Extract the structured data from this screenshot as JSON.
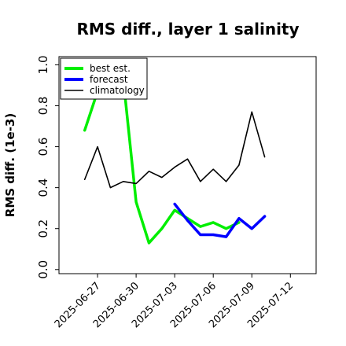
{
  "chart_data": {
    "type": "line",
    "title": "RMS diff., layer 1 salinity",
    "xlabel": "",
    "ylabel": "RMS diff. (1e-3)",
    "ylim": [
      -0.02,
      1.04
    ],
    "xlim": [
      "2025-06-24",
      "2025-07-14"
    ],
    "yticks": [
      0.0,
      0.2,
      0.4,
      0.6,
      0.8,
      1.0
    ],
    "ytick_labels": [
      "0.0",
      "0.2",
      "0.4",
      "0.6",
      "0.8",
      "1.0"
    ],
    "xticks": [
      "2025-06-27",
      "2025-06-30",
      "2025-07-03",
      "2025-07-06",
      "2025-07-09",
      "2025-07-12"
    ],
    "xtick_labels": [
      "2025-06-27",
      "2025-06-30",
      "2025-07-03",
      "2025-07-06",
      "2025-07-09",
      "2025-07-12"
    ],
    "highlighted_xtick": "2025-07-03",
    "highlight_color": "#228B22",
    "grid": false,
    "legend_position": "top-left",
    "series": [
      {
        "name": "best est.",
        "color": "#00ee00",
        "points": [
          [
            "2025-06-26",
            0.68
          ],
          [
            "2025-06-27",
            0.87
          ],
          [
            "2025-06-28",
            0.92
          ],
          [
            "2025-06-29",
            0.93
          ],
          [
            "2025-06-30",
            0.33
          ],
          [
            "2025-07-01",
            0.13
          ],
          [
            "2025-07-02",
            0.2
          ],
          [
            "2025-07-03",
            0.29
          ],
          [
            "2025-07-04",
            0.25
          ],
          [
            "2025-07-05",
            0.21
          ],
          [
            "2025-07-06",
            0.23
          ],
          [
            "2025-07-07",
            0.2
          ],
          [
            "2025-07-08",
            0.23
          ]
        ]
      },
      {
        "name": "forecast",
        "color": "#0000ff",
        "points": [
          [
            "2025-07-03",
            0.32
          ],
          [
            "2025-07-04",
            0.24
          ],
          [
            "2025-07-05",
            0.17
          ],
          [
            "2025-07-06",
            0.17
          ],
          [
            "2025-07-07",
            0.16
          ],
          [
            "2025-07-08",
            0.25
          ],
          [
            "2025-07-09",
            0.2
          ],
          [
            "2025-07-10",
            0.26
          ]
        ]
      },
      {
        "name": "climatology",
        "color": "#000000",
        "points": [
          [
            "2025-06-26",
            0.44
          ],
          [
            "2025-06-27",
            0.6
          ],
          [
            "2025-06-28",
            0.4
          ],
          [
            "2025-06-29",
            0.43
          ],
          [
            "2025-06-30",
            0.42
          ],
          [
            "2025-07-01",
            0.48
          ],
          [
            "2025-07-02",
            0.45
          ],
          [
            "2025-07-03",
            0.5
          ],
          [
            "2025-07-04",
            0.54
          ],
          [
            "2025-07-05",
            0.43
          ],
          [
            "2025-07-06",
            0.49
          ],
          [
            "2025-07-07",
            0.43
          ],
          [
            "2025-07-08",
            0.51
          ],
          [
            "2025-07-09",
            0.77
          ],
          [
            "2025-07-10",
            0.55
          ]
        ]
      }
    ]
  }
}
